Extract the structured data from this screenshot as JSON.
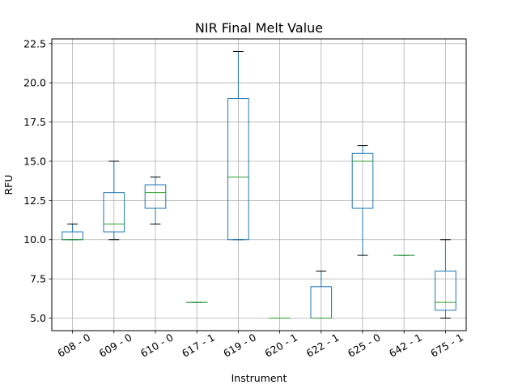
{
  "chart_data": {
    "type": "box",
    "title": "NIR Final Melt Value",
    "xlabel": "Instrument",
    "ylabel": "RFU",
    "ylim": [
      4.2,
      22.8
    ],
    "yticks": [
      5.0,
      7.5,
      10.0,
      12.5,
      15.0,
      17.5,
      20.0,
      22.5
    ],
    "ytick_labels": [
      "5.0",
      "7.5",
      "10.0",
      "12.5",
      "15.0",
      "17.5",
      "20.0",
      "22.5"
    ],
    "grid": true,
    "categories": [
      "608 - 0",
      "609 - 0",
      "610 - 0",
      "617 - 1",
      "619 - 0",
      "620 - 1",
      "622 - 1",
      "625 - 0",
      "642 - 1",
      "675 - 1"
    ],
    "boxes": [
      {
        "whislo": 10.0,
        "q1": 10.0,
        "med": 10.0,
        "q3": 10.5,
        "whishi": 11.0
      },
      {
        "whislo": 10.0,
        "q1": 10.5,
        "med": 11.0,
        "q3": 13.0,
        "whishi": 15.0
      },
      {
        "whislo": 11.0,
        "q1": 12.0,
        "med": 13.0,
        "q3": 13.5,
        "whishi": 14.0
      },
      {
        "whislo": 6.0,
        "q1": 6.0,
        "med": 6.0,
        "q3": 6.0,
        "whishi": 6.0
      },
      {
        "whislo": 10.0,
        "q1": 10.0,
        "med": 14.0,
        "q3": 19.0,
        "whishi": 22.0
      },
      {
        "whislo": 5.0,
        "q1": 5.0,
        "med": 5.0,
        "q3": 5.0,
        "whishi": 5.0
      },
      {
        "whislo": 5.0,
        "q1": 5.0,
        "med": 5.0,
        "q3": 7.0,
        "whishi": 8.0
      },
      {
        "whislo": 9.0,
        "q1": 12.0,
        "med": 15.0,
        "q3": 15.5,
        "whishi": 16.0
      },
      {
        "whislo": 9.0,
        "q1": 9.0,
        "med": 9.0,
        "q3": 9.0,
        "whishi": 9.0
      },
      {
        "whislo": 5.0,
        "q1": 5.5,
        "med": 6.0,
        "q3": 8.0,
        "whishi": 10.0
      }
    ],
    "colors": {
      "box": "#1f77b4",
      "median": "#2ca02c",
      "whisker": "#1f77b4",
      "cap": "#000000",
      "grid": "#b0b0b0"
    }
  }
}
